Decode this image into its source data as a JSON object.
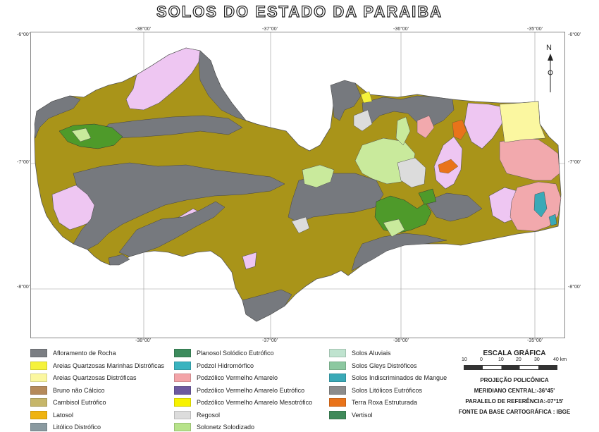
{
  "title": "SOLOS DO ESTADO DA PARAIBA",
  "north_label": "N",
  "coords": {
    "top": [
      "-38°00'",
      "-37°00'",
      "-36°00'",
      "-35°00'"
    ],
    "bottom": [
      "-38°00'",
      "-37°00'",
      "-36°00'",
      "-35°00'"
    ],
    "left": [
      "-6°00'",
      "-7°00'",
      "-8°00'"
    ],
    "right": [
      "-6°00'",
      "-7°00'",
      "-8°00'"
    ]
  },
  "legend": [
    {
      "label": "Afloramento de Rocha",
      "color": "#7b7e83"
    },
    {
      "label": "Areias Quartzosas Marinhas Distróficas",
      "color": "#f5f23a"
    },
    {
      "label": "Areias Quartzosas Distróficas",
      "color": "#fbf7a0"
    },
    {
      "label": "Bruno não Cálcico",
      "color": "#b58a5a"
    },
    {
      "label": "Cambisol Eutrófico",
      "color": "#c6b66a"
    },
    {
      "label": "Latosol",
      "color": "#efb310"
    },
    {
      "label": "Litólico Distrófico",
      "color": "#8a9aa0"
    },
    {
      "label": "Planosol Solódico Eutrófico",
      "color": "#3c8b5c"
    },
    {
      "label": "Podzol Hidromórfico",
      "color": "#39b3bf"
    },
    {
      "label": "Podzólico Vermelho Amarelo",
      "color": "#f3a4a8"
    },
    {
      "label": "Podzólico Vermelho Amarelo Eutrófico",
      "color": "#6d5aa0"
    },
    {
      "label": "Podzólico Vermelho Amarelo Mesotrófico",
      "color": "#f7f200"
    },
    {
      "label": "Regosol",
      "color": "#dcdcdc"
    },
    {
      "label": "Solonetz Solodizado",
      "color": "#b7e38a"
    },
    {
      "label": "Solos Aluviais",
      "color": "#bfe3cf"
    },
    {
      "label": "Solos Gleys Distróficos",
      "color": "#8cc8a0"
    },
    {
      "label": "Solos Indiscriminados de Mangue",
      "color": "#3aa9b7"
    },
    {
      "label": "Solos Litólicos Eutróficos",
      "color": "#8c8c8c"
    },
    {
      "label": "Terra Roxa Estruturada",
      "color": "#e9731a"
    },
    {
      "label": "Vertisol",
      "color": "#3f8a5a"
    }
  ],
  "map_colors": {
    "main": "#a99419",
    "rock": "#76797e",
    "pink": "#eec6f2",
    "green": "#4e9a2a",
    "light_green": "#c9ea9c",
    "salmon": "#f2a9ad",
    "pale_yellow": "#fbf7a0",
    "regosol": "#dcdcdc"
  },
  "scale": {
    "title": "ESCALA GRÁFICA",
    "ticks": [
      "10",
      "0",
      "10",
      "20",
      "30",
      "40 km"
    ],
    "projection": "PROJEÇÃO POLICÔNICA",
    "meridian": "MERIDIANO CENTRAL:-36°45'",
    "parallel": "PARALELO DE REFERÊNCIA:-07°15'",
    "source": "FONTE DA BASE CARTOGRÁFICA : IBGE"
  }
}
